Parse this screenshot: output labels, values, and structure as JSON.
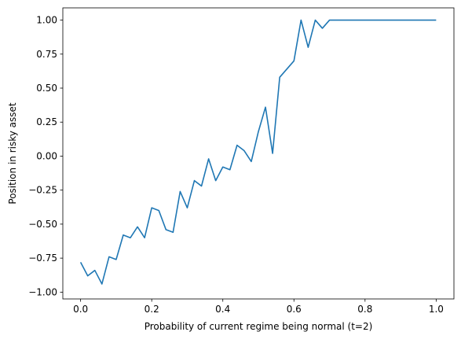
{
  "chart_data": {
    "type": "line",
    "title": "",
    "xlabel": "Probability of current regime being normal (t=2)",
    "ylabel": "Position in risky asset",
    "xlim": [
      -0.05,
      1.05
    ],
    "ylim": [
      -1.05,
      1.09
    ],
    "xticks": [
      0.0,
      0.2,
      0.4,
      0.6,
      0.8,
      1.0
    ],
    "xtick_labels": [
      "0.0",
      "0.2",
      "0.4",
      "0.6",
      "0.8",
      "1.0"
    ],
    "yticks": [
      -1.0,
      -0.75,
      -0.5,
      -0.25,
      0.0,
      0.25,
      0.5,
      0.75,
      1.0
    ],
    "ytick_labels": [
      "−1.00",
      "−0.75",
      "−0.50",
      "−0.25",
      "0.00",
      "0.25",
      "0.50",
      "0.75",
      "1.00"
    ],
    "grid": false,
    "legend": "none",
    "series": [
      {
        "color": "#1f77b4",
        "x": [
          0.0,
          0.02,
          0.04,
          0.06,
          0.08,
          0.1,
          0.12,
          0.14,
          0.16,
          0.18,
          0.2,
          0.22,
          0.24,
          0.26,
          0.28,
          0.3,
          0.32,
          0.34,
          0.36,
          0.38,
          0.4,
          0.42,
          0.44,
          0.46,
          0.48,
          0.5,
          0.52,
          0.54,
          0.56,
          0.58,
          0.6,
          0.62,
          0.64,
          0.66,
          0.68,
          0.7,
          0.72,
          0.74,
          0.76,
          0.78,
          0.8,
          0.82,
          0.84,
          0.86,
          0.88,
          0.9,
          0.92,
          0.94,
          0.96,
          0.98,
          1.0
        ],
        "y": [
          -0.78,
          -0.88,
          -0.84,
          -0.94,
          -0.74,
          -0.76,
          -0.58,
          -0.6,
          -0.52,
          -0.6,
          -0.38,
          -0.4,
          -0.54,
          -0.56,
          -0.26,
          -0.38,
          -0.18,
          -0.22,
          -0.02,
          -0.18,
          -0.08,
          -0.1,
          0.08,
          0.04,
          -0.04,
          0.18,
          0.36,
          0.02,
          0.58,
          0.64,
          0.7,
          1.0,
          0.8,
          1.0,
          0.94,
          1.0,
          1.0,
          1.0,
          1.0,
          1.0,
          1.0,
          1.0,
          1.0,
          1.0,
          1.0,
          1.0,
          1.0,
          1.0,
          1.0,
          1.0,
          1.0
        ]
      }
    ]
  }
}
